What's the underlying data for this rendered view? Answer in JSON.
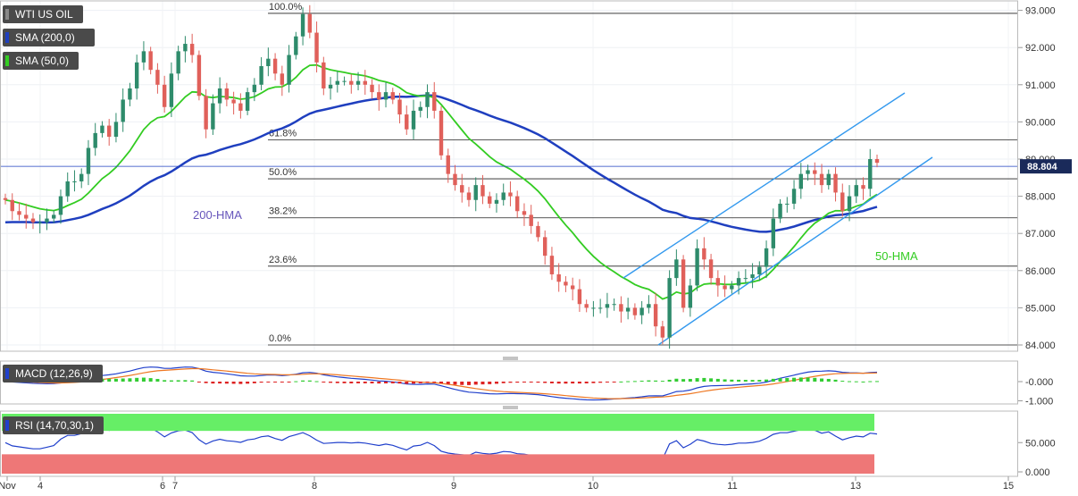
{
  "colors": {
    "up": "#2e8b6b",
    "down": "#e0605a",
    "hma200": "#1f3fbf",
    "hma50": "#33cc22",
    "channel": "#3399ee",
    "fib": "#222222",
    "price_line": "#1f3fbf",
    "macd_line": "#2040cc",
    "signal_line": "#ee7722",
    "hist_pos": "#33cc33",
    "hist_neg": "#dd2222",
    "rsi_line": "#2040cc",
    "rsi_over": "#66ee66",
    "rsi_under": "#ee7777"
  },
  "legend": {
    "symbol": "WTI US OIL",
    "sma200": "SMA (200,0)",
    "sma50": "SMA (50,0)",
    "macd": "MACD (12,26,9)",
    "rsi": "RSI (14,70,30,1)"
  },
  "labels": {
    "hma200": "200-HMA",
    "hma50": "50-HMA",
    "last_price": "88.804"
  },
  "chart_data": [
    {
      "type": "candlestick",
      "title": "WTI US OIL",
      "x_ticks": [
        "Nov",
        "4",
        "6",
        "7",
        "8",
        "9",
        "10",
        "11",
        "13",
        "15"
      ],
      "ylim": [
        84.0,
        93.0
      ],
      "y_ticks": [
        "84.000",
        "85.000",
        "86.000",
        "87.000",
        "88.000",
        "89.000",
        "90.000",
        "91.000",
        "92.000",
        "93.000"
      ],
      "last_price": 88.804,
      "fib_levels": [
        {
          "label": "100.0%",
          "value": 92.92
        },
        {
          "label": "61.8%",
          "value": 89.52
        },
        {
          "label": "50.0%",
          "value": 88.47
        },
        {
          "label": "38.2%",
          "value": 87.42
        },
        {
          "label": "23.6%",
          "value": 86.12
        },
        {
          "label": "0.0%",
          "value": 84.0
        }
      ],
      "candles_close": [
        87.9,
        87.6,
        87.5,
        87.4,
        87.3,
        87.3,
        87.4,
        87.5,
        88.0,
        88.4,
        88.4,
        88.6,
        89.3,
        89.7,
        89.9,
        89.6,
        90.0,
        90.6,
        90.9,
        91.6,
        91.9,
        91.4,
        91.0,
        90.4,
        91.3,
        91.9,
        92.1,
        91.8,
        90.7,
        89.8,
        90.5,
        90.9,
        90.6,
        90.5,
        90.3,
        90.8,
        91.0,
        91.5,
        91.7,
        91.3,
        91.0,
        91.8,
        92.3,
        92.9,
        92.4,
        91.6,
        90.9,
        91.0,
        91.1,
        91.1,
        91.0,
        91.1,
        91.0,
        90.8,
        90.6,
        90.8,
        90.6,
        90.2,
        89.8,
        90.3,
        90.4,
        90.8,
        90.3,
        89.1,
        88.6,
        88.3,
        88.1,
        87.9,
        88.3,
        88.0,
        87.8,
        87.9,
        88.1,
        88.0,
        87.6,
        87.5,
        87.2,
        86.9,
        86.4,
        85.9,
        85.7,
        85.6,
        85.5,
        85.1,
        85.0,
        85.0,
        85.0,
        85.1,
        85.1,
        84.9,
        85.0,
        84.8,
        85.0,
        85.1,
        84.5,
        84.2,
        85.8,
        86.3,
        85.0,
        85.6,
        86.6,
        86.3,
        85.8,
        85.6,
        85.5,
        85.6,
        85.8,
        85.8,
        85.9,
        86.1,
        86.6,
        87.4,
        87.8,
        87.8,
        88.2,
        88.6,
        88.7,
        88.6,
        88.3,
        88.6,
        88.1,
        87.6,
        88.0,
        88.3,
        88.2,
        89.0,
        88.9
      ],
      "hma200_note": "200-HMA",
      "hma50_note": "50-HMA"
    },
    {
      "type": "macd",
      "title": "MACD (12,26,9)",
      "ylim": [
        -1.2,
        0.55
      ],
      "y_ticks": [
        "-0.000",
        "-1.000"
      ]
    },
    {
      "type": "rsi",
      "title": "RSI (14,70,30,1)",
      "ylim": [
        0,
        100
      ],
      "y_ticks": [
        "50.000",
        "0.000"
      ],
      "overbought": 70,
      "oversold": 30
    }
  ]
}
